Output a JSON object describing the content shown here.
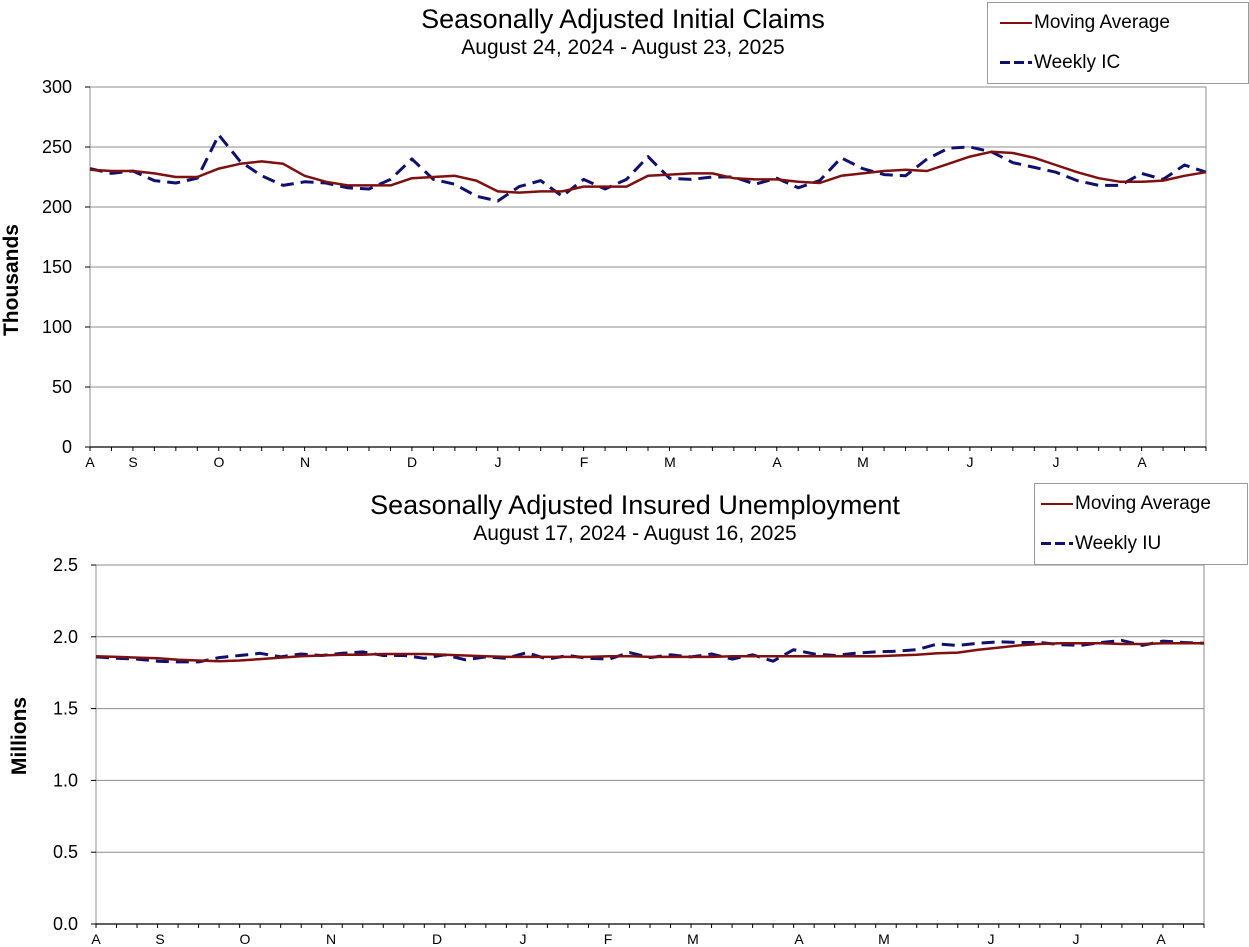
{
  "chart_data": [
    {
      "type": "line",
      "title": "Seasonally Adjusted Initial Claims",
      "subtitle": "August 24, 2024 - August 23, 2025",
      "ylabel": "Thousands",
      "ylim": [
        0,
        300
      ],
      "yticks": [
        "0",
        "50",
        "100",
        "150",
        "200",
        "250",
        "300"
      ],
      "month_labels": [
        "A",
        "S",
        "O",
        "N",
        "D",
        "J",
        "F",
        "M",
        "A",
        "M",
        "J",
        "J",
        "A"
      ],
      "grid": true,
      "legend_position": "top-right",
      "series": [
        {
          "name": "Moving Average",
          "color": "#7f1010",
          "style": "solid",
          "values": [
            231,
            230,
            230,
            228,
            225,
            225,
            232,
            236,
            238,
            236,
            226,
            221,
            218,
            218,
            218,
            224,
            225,
            226,
            222,
            213,
            212,
            213,
            213,
            217,
            217,
            217,
            226,
            227,
            228,
            228,
            224,
            223,
            223,
            221,
            220,
            226,
            228,
            230,
            231,
            230,
            236,
            242,
            246,
            245,
            241,
            235,
            229,
            224,
            221,
            221,
            222,
            226,
            229
          ]
        },
        {
          "name": "Weekly IC",
          "color": "#10106e",
          "style": "dashed",
          "values": [
            232,
            228,
            230,
            222,
            220,
            224,
            260,
            238,
            226,
            218,
            221,
            220,
            216,
            215,
            223,
            240,
            223,
            219,
            209,
            205,
            217,
            222,
            209,
            223,
            215,
            223,
            242,
            224,
            223,
            225,
            225,
            219,
            224,
            216,
            222,
            241,
            232,
            227,
            226,
            240,
            249,
            250,
            246,
            237,
            233,
            229,
            222,
            218,
            218,
            228,
            223,
            235,
            229
          ]
        }
      ]
    },
    {
      "type": "line",
      "title": "Seasonally Adjusted Insured Unemployment",
      "subtitle": "August 17, 2024 - August 16, 2025",
      "ylabel": "Millions",
      "ylim": [
        0,
        2.5
      ],
      "yticks": [
        "0.0",
        "0.5",
        "1.0",
        "1.5",
        "2.0",
        "2.5"
      ],
      "month_labels": [
        "A",
        "S",
        "O",
        "N",
        "D",
        "J",
        "F",
        "M",
        "A",
        "M",
        "J",
        "J",
        "A"
      ],
      "grid": true,
      "legend_position": "top-right",
      "series": [
        {
          "name": "Moving Average",
          "color": "#7f1010",
          "style": "solid",
          "values": [
            1.865,
            1.86,
            1.855,
            1.85,
            1.84,
            1.835,
            1.83,
            1.835,
            1.845,
            1.855,
            1.865,
            1.87,
            1.875,
            1.875,
            1.88,
            1.88,
            1.88,
            1.875,
            1.87,
            1.865,
            1.86,
            1.86,
            1.86,
            1.86,
            1.86,
            1.865,
            1.865,
            1.86,
            1.86,
            1.86,
            1.86,
            1.865,
            1.865,
            1.865,
            1.865,
            1.865,
            1.865,
            1.865,
            1.865,
            1.87,
            1.875,
            1.885,
            1.89,
            1.91,
            1.925,
            1.94,
            1.95,
            1.955,
            1.955,
            1.955,
            1.95,
            1.95,
            1.955,
            1.955,
            1.955
          ]
        },
        {
          "name": "Weekly IU",
          "color": "#10106e",
          "style": "dashed",
          "values": [
            1.86,
            1.85,
            1.845,
            1.83,
            1.825,
            1.825,
            1.855,
            1.87,
            1.885,
            1.86,
            1.88,
            1.87,
            1.885,
            1.895,
            1.87,
            1.87,
            1.85,
            1.875,
            1.84,
            1.86,
            1.85,
            1.89,
            1.845,
            1.87,
            1.85,
            1.845,
            1.89,
            1.855,
            1.875,
            1.86,
            1.88,
            1.845,
            1.875,
            1.83,
            1.91,
            1.88,
            1.87,
            1.885,
            1.895,
            1.9,
            1.91,
            1.95,
            1.94,
            1.955,
            1.965,
            1.96,
            1.96,
            1.945,
            1.94,
            1.96,
            1.975,
            1.94,
            1.97,
            1.96,
            1.955
          ]
        }
      ]
    }
  ]
}
